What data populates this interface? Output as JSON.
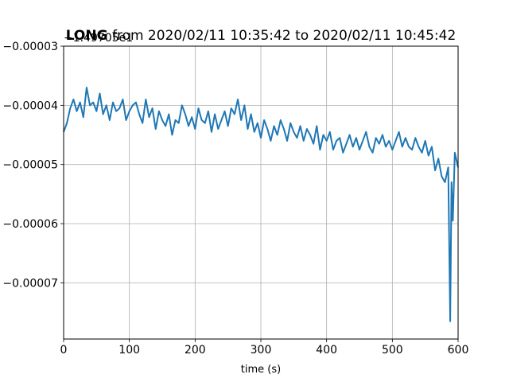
{
  "chart_data": {
    "type": "line",
    "title": {
      "bold": "LONG",
      "rest": " from 2020/02/11 10:35:42 to 2020/02/11 10:45:42"
    },
    "xlabel": "time (s)",
    "ylabel": "",
    "y_offset_label": "−1.49705e1",
    "xlim": [
      0,
      600
    ],
    "ylim": [
      -7.95e-05,
      -3e-05
    ],
    "x_ticks": [
      0,
      100,
      200,
      300,
      400,
      500,
      600
    ],
    "x_tick_labels": [
      "0",
      "100",
      "200",
      "300",
      "400",
      "500",
      "600"
    ],
    "y_ticks": [
      -3e-05,
      -4e-05,
      -5e-05,
      -6e-05,
      -7e-05
    ],
    "y_tick_labels": [
      "−0.00003",
      "−0.00004",
      "−0.00005",
      "−0.00006",
      "−0.00007"
    ],
    "grid": true,
    "line_color": "#1f77b4",
    "series": [
      {
        "x": [
          0,
          5,
          10,
          15,
          20,
          25,
          30,
          35,
          40,
          45,
          50,
          55,
          60,
          65,
          70,
          75,
          80,
          85,
          90,
          95,
          100,
          105,
          110,
          115,
          120,
          125,
          130,
          135,
          140,
          145,
          150,
          155,
          160,
          165,
          170,
          175,
          180,
          185,
          190,
          195,
          200,
          205,
          210,
          215,
          220,
          225,
          230,
          235,
          240,
          245,
          250,
          255,
          260,
          265,
          270,
          275,
          280,
          285,
          290,
          295,
          300,
          305,
          310,
          315,
          320,
          325,
          330,
          335,
          340,
          345,
          350,
          355,
          360,
          365,
          370,
          375,
          380,
          385,
          390,
          395,
          400,
          405,
          410,
          415,
          420,
          425,
          430,
          435,
          440,
          445,
          450,
          455,
          460,
          465,
          470,
          475,
          480,
          485,
          490,
          495,
          500,
          505,
          510,
          515,
          520,
          525,
          530,
          535,
          540,
          545,
          550,
          555,
          560,
          565,
          570,
          575,
          580,
          585,
          588,
          590,
          592,
          595,
          600
        ],
        "y": [
          -4.45e-05,
          -4.3e-05,
          -4.05e-05,
          -3.9e-05,
          -4.1e-05,
          -3.95e-05,
          -4.2e-05,
          -3.7e-05,
          -4e-05,
          -3.95e-05,
          -4.1e-05,
          -3.8e-05,
          -4.15e-05,
          -4e-05,
          -4.25e-05,
          -3.95e-05,
          -4.1e-05,
          -4.05e-05,
          -3.9e-05,
          -4.25e-05,
          -4.1e-05,
          -4e-05,
          -3.95e-05,
          -4.15e-05,
          -4.3e-05,
          -3.9e-05,
          -4.2e-05,
          -4.05e-05,
          -4.4e-05,
          -4.1e-05,
          -4.25e-05,
          -4.35e-05,
          -4.15e-05,
          -4.5e-05,
          -4.25e-05,
          -4.3e-05,
          -4e-05,
          -4.15e-05,
          -4.35e-05,
          -4.2e-05,
          -4.4e-05,
          -4.05e-05,
          -4.25e-05,
          -4.3e-05,
          -4.1e-05,
          -4.45e-05,
          -4.15e-05,
          -4.4e-05,
          -4.25e-05,
          -4.1e-05,
          -4.35e-05,
          -4.05e-05,
          -4.15e-05,
          -3.9e-05,
          -4.25e-05,
          -4e-05,
          -4.4e-05,
          -4.15e-05,
          -4.45e-05,
          -4.3e-05,
          -4.55e-05,
          -4.25e-05,
          -4.4e-05,
          -4.6e-05,
          -4.35e-05,
          -4.5e-05,
          -4.25e-05,
          -4.4e-05,
          -4.6e-05,
          -4.3e-05,
          -4.45e-05,
          -4.55e-05,
          -4.35e-05,
          -4.6e-05,
          -4.4e-05,
          -4.5e-05,
          -4.65e-05,
          -4.35e-05,
          -4.75e-05,
          -4.5e-05,
          -4.6e-05,
          -4.45e-05,
          -4.75e-05,
          -4.6e-05,
          -4.55e-05,
          -4.8e-05,
          -4.65e-05,
          -4.5e-05,
          -4.7e-05,
          -4.55e-05,
          -4.75e-05,
          -4.6e-05,
          -4.45e-05,
          -4.7e-05,
          -4.8e-05,
          -4.55e-05,
          -4.65e-05,
          -4.5e-05,
          -4.7e-05,
          -4.6e-05,
          -4.75e-05,
          -4.6e-05,
          -4.45e-05,
          -4.7e-05,
          -4.55e-05,
          -4.7e-05,
          -4.75e-05,
          -4.55e-05,
          -4.7e-05,
          -4.8e-05,
          -4.6e-05,
          -4.85e-05,
          -4.7e-05,
          -5.1e-05,
          -4.9e-05,
          -5.2e-05,
          -5.3e-05,
          -5.05e-05,
          -7.65e-05,
          -5.3e-05,
          -5.95e-05,
          -4.8e-05,
          -5.05e-05
        ]
      }
    ]
  }
}
